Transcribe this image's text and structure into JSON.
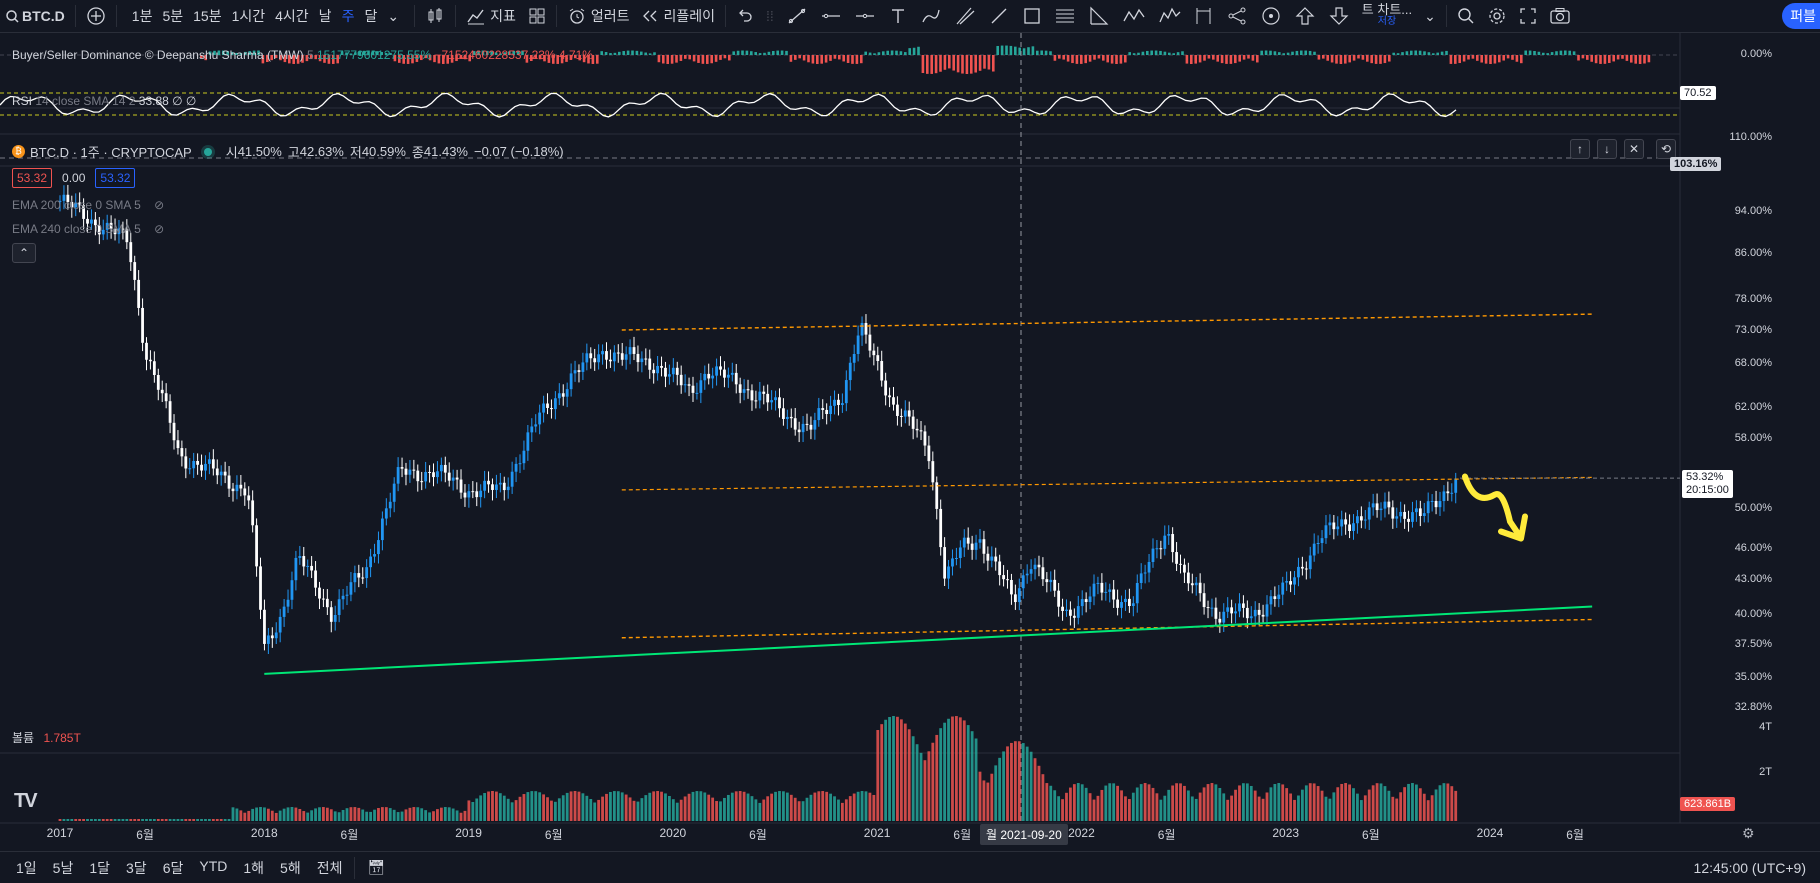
{
  "toolbar": {
    "symbol": "BTC.D",
    "timeframes": [
      "1분",
      "5분",
      "15분",
      "1시간",
      "4시간",
      "날",
      "주",
      "달"
    ],
    "active_timeframe_index": 6,
    "indicators_label": "지표",
    "alert_label": "얼러트",
    "replay_label": "리플레이",
    "overflow_label": "트 차트...",
    "overflow_sub": "저장",
    "publish_label": "퍼블"
  },
  "panes": {
    "dominance": {
      "title": "Buyer/Seller Dominance © Deepanshu Sharma (TMW)",
      "param": "5",
      "v1": "1517779601275.55%",
      "v2": "−7152460228537.23%",
      "v3": "4.71%",
      "axis_value": "0.00%"
    },
    "rsi": {
      "title": "RSI",
      "params": "14 close SMA 14 2",
      "value": "33.88",
      "extra": "∅ ∅",
      "axis_value": "70.52"
    },
    "main": {
      "symbol_line": "BTC.D · 1주 · CRYPTOCAP",
      "ohlc": {
        "o_label": "시",
        "o": "41.50%",
        "h_label": "고",
        "h": "42.63%",
        "l_label": "저",
        "l": "40.59%",
        "c_label": "종",
        "c": "41.43%",
        "chg": "−0.07 (−0.18%)"
      },
      "sell": "53.32",
      "spread": "0.00",
      "buy": "53.32",
      "ema1": "EMA 200 close 0 SMA 5",
      "ema2": "EMA 240 close 0 SMA 5",
      "price_label": "53.32%",
      "countdown": "20:15:00",
      "top_label": "103.16%",
      "y_ticks": [
        "110.00%",
        "94.00%",
        "86.00%",
        "78.00%",
        "73.00%",
        "68.00%",
        "62.00%",
        "58.00%",
        "50.00%",
        "46.00%",
        "43.00%",
        "40.00%",
        "37.50%",
        "35.00%",
        "32.80%"
      ]
    },
    "volume": {
      "label": "볼륨",
      "value": "1.785T",
      "ticks": [
        "4T",
        "2T"
      ],
      "axis_value": "623.861B"
    }
  },
  "x_axis": {
    "labels": [
      "2017",
      "6월",
      "2018",
      "6월",
      "2019",
      "6월",
      "2020",
      "6월",
      "2021",
      "6월",
      "2022",
      "6월",
      "2023",
      "6월",
      "2024",
      "6월"
    ],
    "crosshair_label": "월 2021-09-20"
  },
  "bottom_bar": {
    "ranges": [
      "1일",
      "5날",
      "1달",
      "3달",
      "6달",
      "YTD",
      "1해",
      "5해",
      "전체"
    ],
    "time": "12:45:00 (UTC+9)"
  },
  "chart_data": {
    "type": "candlestick",
    "title": "BTC.D · 1주 · CRYPTOCAP",
    "x_range": [
      "2017-01",
      "2023-11"
    ],
    "y_scale": "log",
    "ylim": [
      32.8,
      110
    ],
    "close_path": [
      [
        "2017-01",
        96
      ],
      [
        "2017-03",
        92
      ],
      [
        "2017-05",
        88
      ],
      [
        "2017-06",
        70
      ],
      [
        "2017-08",
        56
      ],
      [
        "2017-10",
        54
      ],
      [
        "2017-12",
        52
      ],
      [
        "2018-01",
        37
      ],
      [
        "2018-02",
        40
      ],
      [
        "2018-03",
        45
      ],
      [
        "2018-05",
        40
      ],
      [
        "2018-07",
        44
      ],
      [
        "2018-09",
        54
      ],
      [
        "2018-11",
        54
      ],
      [
        "2019-01",
        52
      ],
      [
        "2019-03",
        52
      ],
      [
        "2019-05",
        60
      ],
      [
        "2019-07",
        66
      ],
      [
        "2019-09",
        70
      ],
      [
        "2019-10",
        69
      ],
      [
        "2019-12",
        68
      ],
      [
        "2020-02",
        64
      ],
      [
        "2020-03",
        67
      ],
      [
        "2020-05",
        65
      ],
      [
        "2020-07",
        62
      ],
      [
        "2020-09",
        59
      ],
      [
        "2020-11",
        64
      ],
      [
        "2020-12",
        73
      ],
      [
        "2021-01",
        68
      ],
      [
        "2021-02",
        62
      ],
      [
        "2021-04",
        57
      ],
      [
        "2021-05",
        43
      ],
      [
        "2021-06",
        46
      ],
      [
        "2021-07",
        47
      ],
      [
        "2021-09",
        41
      ],
      [
        "2021-10",
        45
      ],
      [
        "2021-12",
        40
      ],
      [
        "2022-02",
        42
      ],
      [
        "2022-04",
        41
      ],
      [
        "2022-06",
        48
      ],
      [
        "2022-07",
        43
      ],
      [
        "2022-09",
        40
      ],
      [
        "2022-11",
        40
      ],
      [
        "2023-01",
        42
      ],
      [
        "2023-03",
        47
      ],
      [
        "2023-05",
        49
      ],
      [
        "2023-07",
        50
      ],
      [
        "2023-09",
        49
      ],
      [
        "2023-11",
        53.32
      ]
    ],
    "annotations": {
      "channel_top": [
        [
          "2019-10",
          73
        ],
        [
          "2024-07",
          75.5
        ]
      ],
      "channel_mid": [
        [
          "2019-10",
          52
        ],
        [
          "2024-07",
          53.4
        ]
      ],
      "channel_bottom": [
        [
          "2019-10",
          38
        ],
        [
          "2024-07",
          39.5
        ]
      ],
      "support": [
        [
          "2018-01",
          35.2
        ],
        [
          "2024-07",
          40.6
        ]
      ],
      "forecast_arrow_color": "#ffeb3b"
    },
    "colors": {
      "up": "#2196f3",
      "down": "#ffffff",
      "channel": "#ff9800",
      "support": "#00e676",
      "vol_up": "#26a69a",
      "vol_down": "#ef5350"
    }
  }
}
